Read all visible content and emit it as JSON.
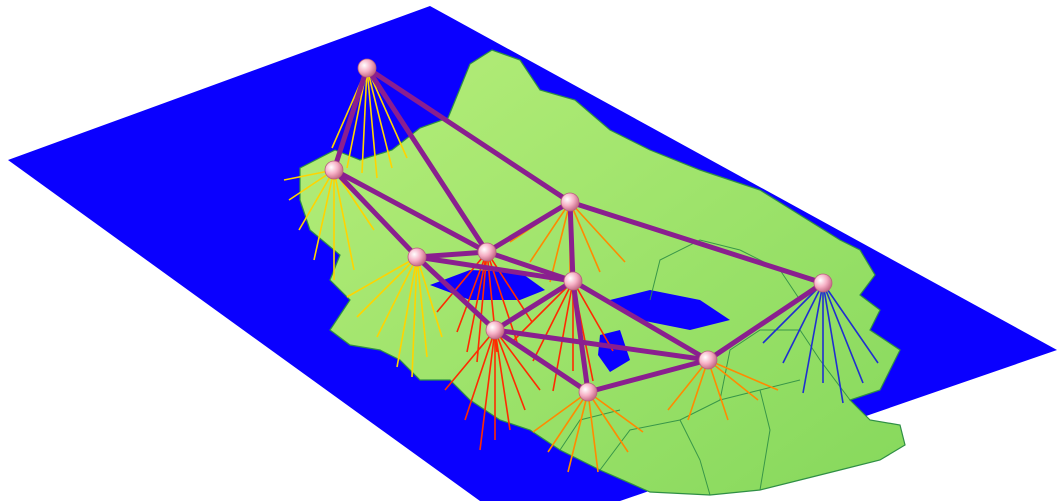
{
  "map": {
    "colors": {
      "sea": "#0a00ff",
      "land": "#9be264",
      "land_shade": "#6cc94a",
      "land_border": "#2f8f45",
      "backbone_link": "#8a1f8f",
      "node_fill": "#f6b1c6",
      "node_highlight": "#ffffff",
      "access_red": "#ff2a00",
      "access_yellow": "#ffd400",
      "access_orange": "#ff8a00",
      "access_blue": "#1f2fd0"
    },
    "nodes": [
      {
        "id": "n1"
      },
      {
        "id": "n2"
      },
      {
        "id": "n3"
      },
      {
        "id": "n4"
      },
      {
        "id": "n5"
      },
      {
        "id": "n6"
      },
      {
        "id": "n7"
      },
      {
        "id": "n8"
      },
      {
        "id": "n9"
      },
      {
        "id": "n10"
      }
    ],
    "links": [
      [
        "n1",
        "n2"
      ],
      [
        "n1",
        "n4"
      ],
      [
        "n1",
        "n5"
      ],
      [
        "n2",
        "n3"
      ],
      [
        "n2",
        "n4"
      ],
      [
        "n3",
        "n4"
      ],
      [
        "n3",
        "n7"
      ],
      [
        "n4",
        "n5"
      ],
      [
        "n4",
        "n6"
      ],
      [
        "n5",
        "n6"
      ],
      [
        "n5",
        "n10"
      ],
      [
        "n6",
        "n7"
      ],
      [
        "n6",
        "n9"
      ],
      [
        "n6",
        "n8"
      ],
      [
        "n7",
        "n8"
      ],
      [
        "n7",
        "n9"
      ],
      [
        "n8",
        "n9"
      ],
      [
        "n9",
        "n10"
      ],
      [
        "n3",
        "n6"
      ]
    ],
    "access_fans": [
      {
        "node": "n1",
        "color_key": "access_yellow"
      },
      {
        "node": "n2",
        "color_key": "access_yellow"
      },
      {
        "node": "n3",
        "color_key": "access_yellow"
      },
      {
        "node": "n4",
        "color_key": "access_red"
      },
      {
        "node": "n5",
        "color_key": "access_orange"
      },
      {
        "node": "n6",
        "color_key": "access_red"
      },
      {
        "node": "n7",
        "color_key": "access_red"
      },
      {
        "node": "n8",
        "color_key": "access_orange"
      },
      {
        "node": "n9",
        "color_key": "access_orange"
      },
      {
        "node": "n10",
        "color_key": "access_blue"
      }
    ]
  }
}
